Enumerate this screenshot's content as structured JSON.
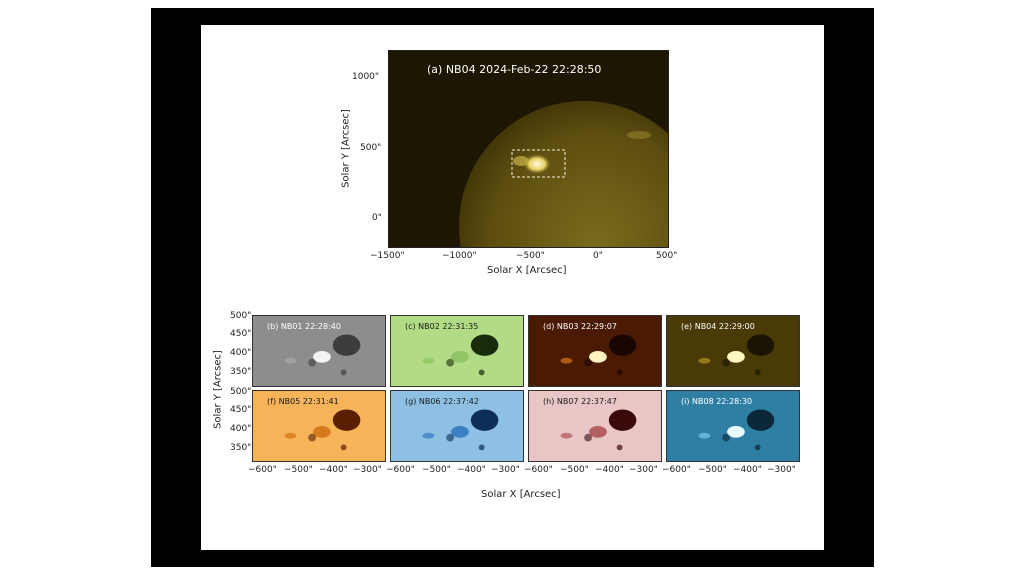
{
  "top_panel": {
    "title": "(a) NB04 2024-Feb-22 22:28:50",
    "x_label": "Solar X [Arcsec]",
    "y_label": "Solar Y [Arcsec]",
    "x_ticks": [
      "−1500\"",
      "−1000\"",
      "−500\"",
      "0\"",
      "500\""
    ],
    "y_ticks": [
      "1000\"",
      "500\"",
      "0\""
    ]
  },
  "grid": {
    "x_label": "Solar X [Arcsec]",
    "y_label": "Solar Y [Arcsec]",
    "y_ticks": [
      "500\"",
      "450\"",
      "400\"",
      "350\""
    ],
    "x_ticks": [
      "−600\"",
      "−500\"",
      "−400\"",
      "−300\""
    ],
    "panels": [
      {
        "title": "(b) NB01 22:28:40",
        "colormap": "gray"
      },
      {
        "title": "(c) NB02 22:31:35",
        "colormap": "green"
      },
      {
        "title": "(d) NB03 22:29:07",
        "colormap": "red-hot"
      },
      {
        "title": "(e) NB04 22:29:00",
        "colormap": "gold"
      },
      {
        "title": "(f) NB05 22:31:41",
        "colormap": "orange"
      },
      {
        "title": "(g) NB06 22:37:42",
        "colormap": "blue"
      },
      {
        "title": "(h) NB07 22:37:47",
        "colormap": "pink"
      },
      {
        "title": "(i) NB08 22:28:30",
        "colormap": "cyan"
      }
    ]
  },
  "colors": {
    "frame": "#000000",
    "slide": "#ffffff",
    "sun_gold": "#6b5a12",
    "sky_dark": "#1c1603"
  }
}
